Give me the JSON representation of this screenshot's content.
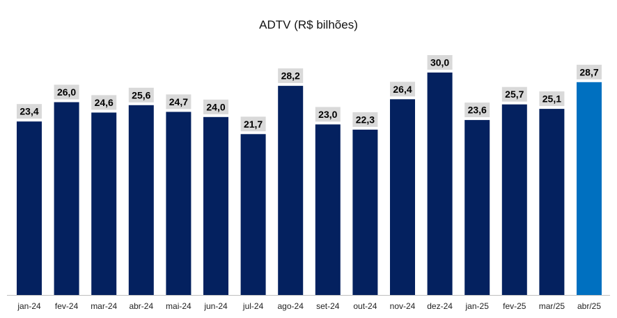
{
  "chart_data": {
    "type": "bar",
    "title": "ADTV (R$ bilhões)",
    "xlabel": "",
    "ylabel": "",
    "categories": [
      "jan-24",
      "fev-24",
      "mar-24",
      "abr-24",
      "mai-24",
      "jun-24",
      "jul-24",
      "ago-24",
      "set-24",
      "out-24",
      "nov-24",
      "dez-24",
      "jan-25",
      "fev-25",
      "mar/25",
      "abr/25"
    ],
    "values": [
      23.4,
      26.0,
      24.6,
      25.6,
      24.7,
      24.0,
      21.7,
      28.2,
      23.0,
      22.3,
      26.4,
      30.0,
      23.6,
      25.7,
      25.1,
      28.7
    ],
    "value_labels": [
      "23,4",
      "26,0",
      "24,6",
      "25,6",
      "24,7",
      "24,0",
      "21,7",
      "28,2",
      "23,0",
      "22,3",
      "26,4",
      "30,0",
      "23,6",
      "25,7",
      "25,1",
      "28,7"
    ],
    "highlight_index": 15,
    "ylim": [
      0,
      30
    ],
    "grid": false,
    "legend": "none",
    "colors": {
      "bar": "#04215F",
      "highlight": "#0070C0",
      "label_box": "#D9D9D9",
      "axis": "#BFBFBF"
    }
  }
}
